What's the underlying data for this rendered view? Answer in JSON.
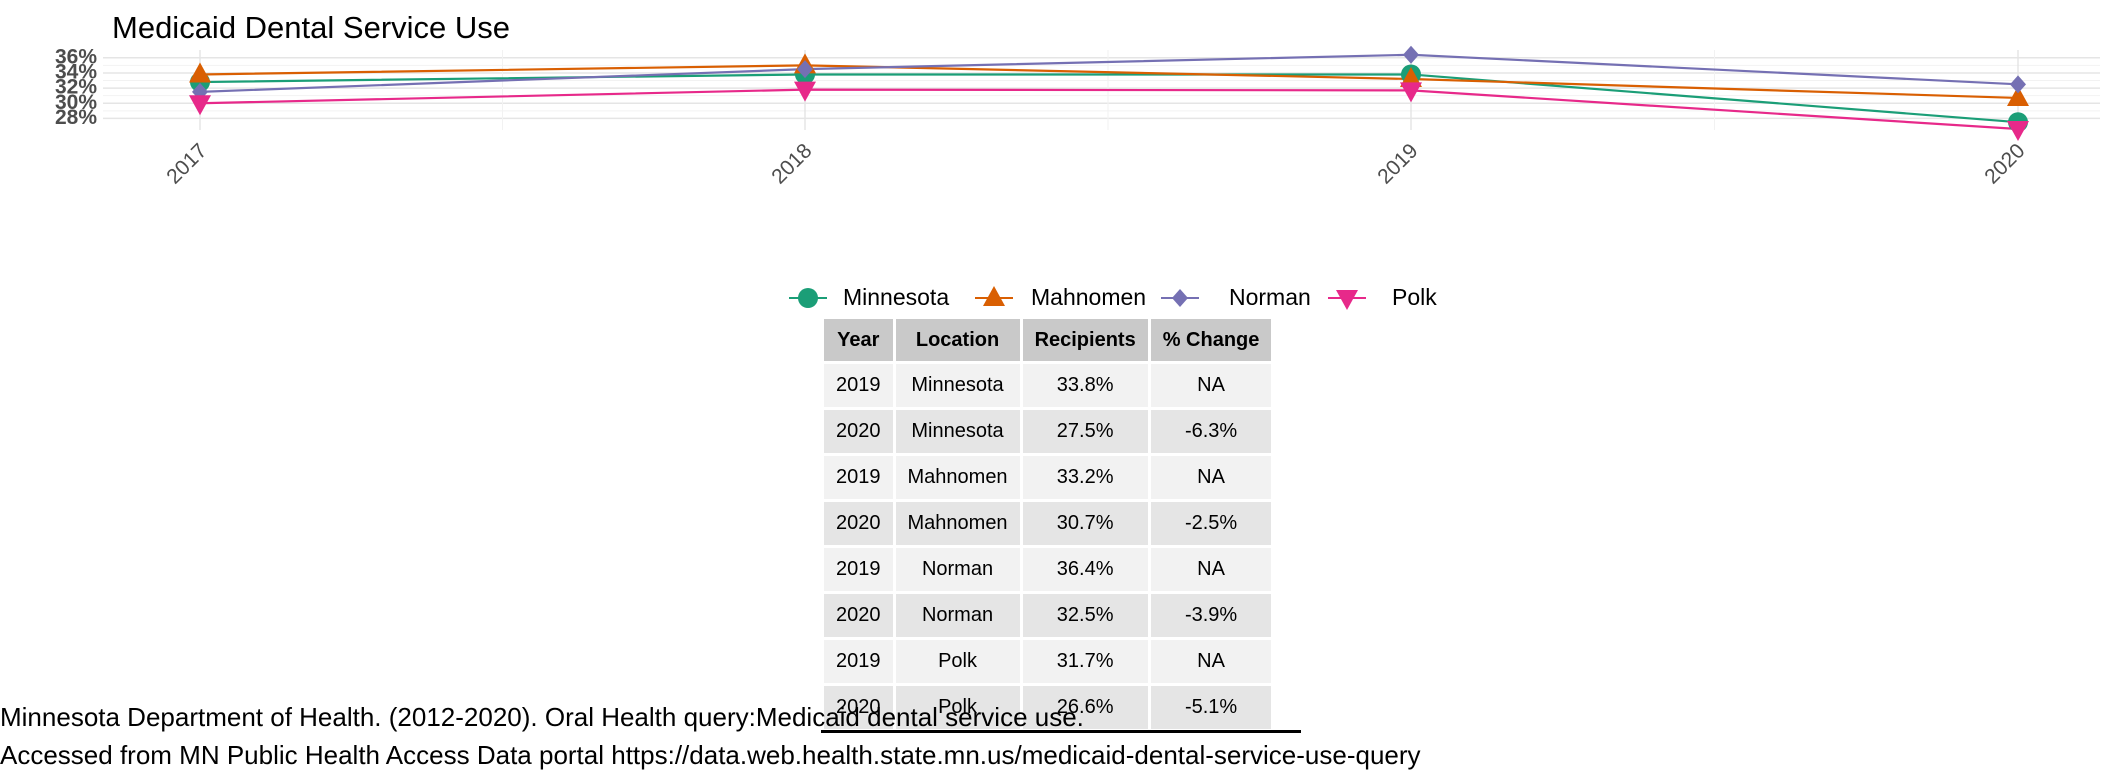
{
  "chart_data": {
    "type": "line",
    "title": "Medicaid Dental Service Use",
    "x": [
      "2017",
      "2018",
      "2019",
      "2020"
    ],
    "ylim": [
      27,
      36.5
    ],
    "y_ticks": [
      "28%",
      "30%",
      "32%",
      "34%",
      "36%"
    ],
    "y_tick_values": [
      28,
      30,
      32,
      34,
      36
    ],
    "grid": true,
    "legend_position": "bottom",
    "series": [
      {
        "name": "Minnesota",
        "values": [
          32.8,
          33.8,
          33.8,
          27.5
        ],
        "color": "#1b9e77",
        "marker": "circle"
      },
      {
        "name": "Mahnomen",
        "values": [
          33.8,
          35.0,
          33.2,
          30.7
        ],
        "color": "#d95f02",
        "marker": "triangle-up"
      },
      {
        "name": "Norman",
        "values": [
          31.5,
          34.5,
          36.4,
          32.5
        ],
        "color": "#7570b3",
        "marker": "diamond"
      },
      {
        "name": "Polk",
        "values": [
          30.0,
          31.8,
          31.7,
          26.6
        ],
        "color": "#e7298a",
        "marker": "triangle-down"
      }
    ]
  },
  "table": {
    "headers": [
      "Year",
      "Location",
      "Recipients",
      "% Change"
    ],
    "rows": [
      [
        "2019",
        "Minnesota",
        "33.8%",
        "NA"
      ],
      [
        "2020",
        "Minnesota",
        "27.5%",
        "-6.3%"
      ],
      [
        "2019",
        "Mahnomen",
        "33.2%",
        "NA"
      ],
      [
        "2020",
        "Mahnomen",
        "30.7%",
        "-2.5%"
      ],
      [
        "2019",
        "Norman",
        "36.4%",
        "NA"
      ],
      [
        "2020",
        "Norman",
        "32.5%",
        "-3.9%"
      ],
      [
        "2019",
        "Polk",
        "31.7%",
        "NA"
      ],
      [
        "2020",
        "Polk",
        "26.6%",
        "-5.1%"
      ]
    ]
  },
  "source": {
    "line1": "Minnesota Department of Health. (2012-2020). Oral Health query:Medicaid dental service use.",
    "line2": "Accessed from MN Public Health Access Data portal https://data.web.health.state.mn.us/medicaid-dental-service-use-query"
  }
}
